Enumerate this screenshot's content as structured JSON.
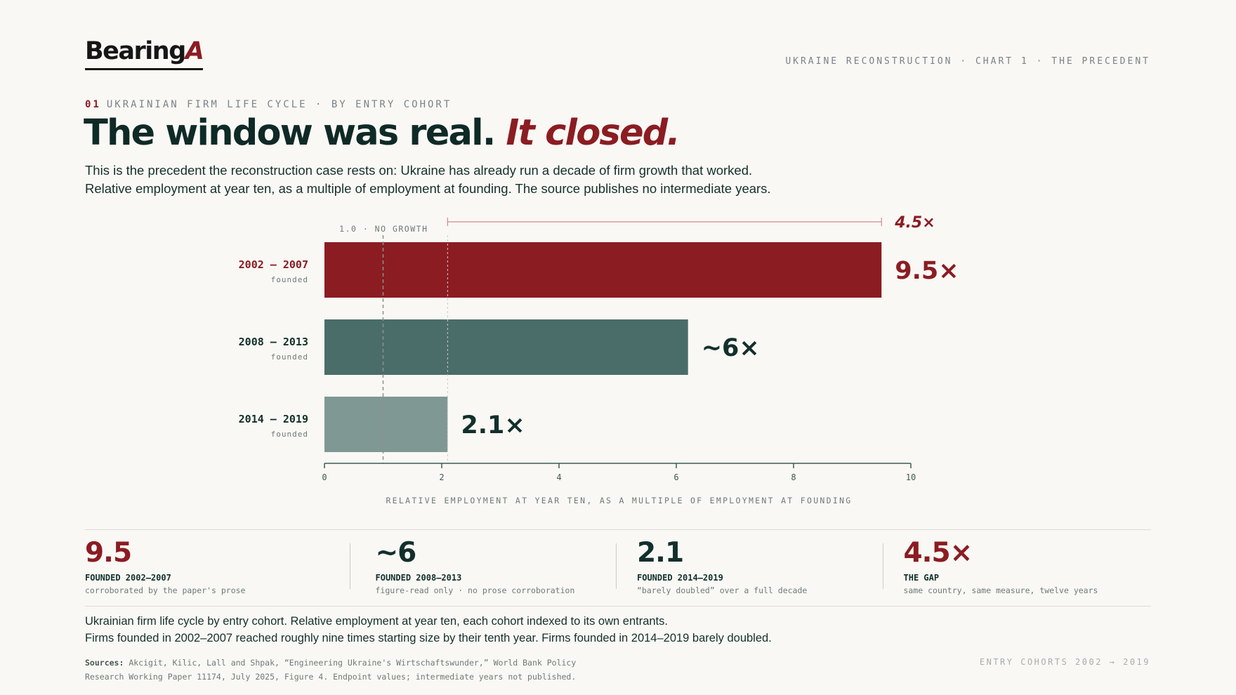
{
  "brand": {
    "logo_main": "Bearing",
    "logo_accent": "A"
  },
  "header": {
    "meta": "UKRAINE RECONSTRUCTION · CHART 1 · THE PRECEDENT"
  },
  "eyebrow": {
    "number": "01",
    "text": "UKRAINIAN FIRM LIFE CYCLE · BY ENTRY COHORT"
  },
  "headline": {
    "main": "The window was real. ",
    "emphasis": "It closed."
  },
  "intro": [
    "This is the precedent the reconstruction case rests on: Ukraine has already run a decade of firm growth that worked.",
    "Relative employment at year ten, as a multiple of employment at founding. The source publishes no intermediate years."
  ],
  "colors": {
    "accent": "#8b1c22",
    "dark": "#12302b",
    "teal": "#4a6d69",
    "light_teal": "#7f9893",
    "muted": "#6e7a78"
  },
  "chart_data": {
    "type": "bar",
    "orientation": "horizontal",
    "categories": [
      "2002 – 2007",
      "2008 – 2013",
      "2014 – 2019"
    ],
    "category_sublabel": "founded",
    "values": [
      9.5,
      6.2,
      2.1
    ],
    "value_labels": [
      "9.5×",
      "~6×",
      "2.1×"
    ],
    "bar_colors": [
      "#8b1c22",
      "#4a6d69",
      "#7f9893"
    ],
    "label_colors": [
      "#8b1c22",
      "#12302b",
      "#12302b"
    ],
    "category_label_colors": [
      "#8b1c22",
      "#12302b",
      "#12302b"
    ],
    "xlim": [
      0,
      10
    ],
    "xticks": [
      0,
      2,
      4,
      6,
      8,
      10
    ],
    "xlabel": "RELATIVE EMPLOYMENT AT YEAR TEN, AS A MULTIPLE OF EMPLOYMENT AT FOUNDING",
    "reference_line": {
      "value": 1.0,
      "label": "1.0 · NO GROWTH"
    },
    "gap_bracket": {
      "from": 2.1,
      "to": 9.5,
      "label": "4.5×"
    }
  },
  "stats": [
    {
      "value": "9.5",
      "label": "FOUNDED 2002–2007",
      "note": "corroborated by the paper's prose",
      "color": "#8b1c22"
    },
    {
      "value": "~6",
      "label": "FOUNDED 2008–2013",
      "note": "figure-read only · no prose corroboration",
      "color": "#12302b"
    },
    {
      "value": "2.1",
      "label": "FOUNDED 2014–2019",
      "note": "“barely doubled” over a full decade",
      "color": "#12302b"
    },
    {
      "value": "4.5×",
      "label": "THE GAP",
      "note": "same country, same measure, twelve years",
      "color": "#8b1c22"
    }
  ],
  "caption": [
    "Ukrainian firm life cycle by entry cohort. Relative employment at year ten, each cohort indexed to its own entrants.",
    "Firms founded in 2002–2007 reached roughly nine times starting size by their tenth year. Firms founded in 2014–2019 barely doubled."
  ],
  "sources": {
    "label": "Sources:",
    "line1": " Akcigit, Kilic, Lall and Shpak, “Engineering Ukraine's Wirtschaftswunder,” World Bank Policy",
    "line2": "Research Working Paper 11174, July 2025, Figure 4. Endpoint values; intermediate years not published."
  },
  "footer_right": "ENTRY COHORTS 2002 → 2019"
}
